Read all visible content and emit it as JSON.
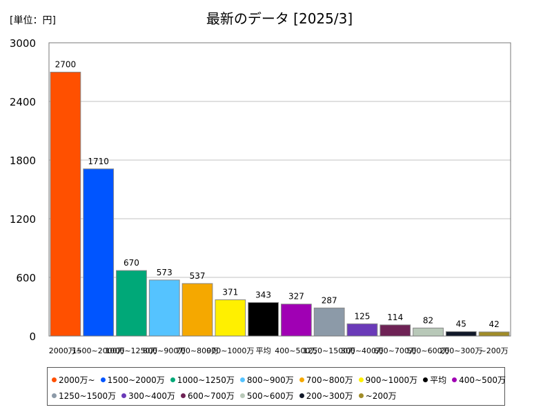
{
  "chart_data": {
    "type": "bar",
    "title": "最新のデータ [2025/3]",
    "unit_label": "[単位：円]",
    "xlabel": "",
    "ylabel": "",
    "ylim": [
      0,
      3000
    ],
    "yticks": [
      0,
      600,
      1200,
      1800,
      2400,
      3000
    ],
    "grid": true,
    "legend_position": "bottom",
    "categories": [
      "2000万~",
      "1500~2000万",
      "1000~1250万",
      "800~900万",
      "700~800万",
      "900~1000万",
      "平均",
      "400~500万",
      "1250~1500万",
      "300~400万",
      "600~700万",
      "500~600万",
      "200~300万",
      "~200万"
    ],
    "values": [
      2700,
      1710,
      670,
      573,
      537,
      371,
      343,
      327,
      287,
      125,
      114,
      82,
      45,
      42
    ],
    "colors": [
      "#ff5000",
      "#0055ff",
      "#00a878",
      "#55c3ff",
      "#f5a800",
      "#fff000",
      "#000000",
      "#a000b4",
      "#8c9aa8",
      "#6a3ab8",
      "#6e2255",
      "#b8c8b8",
      "#101828",
      "#a08c28"
    ]
  }
}
